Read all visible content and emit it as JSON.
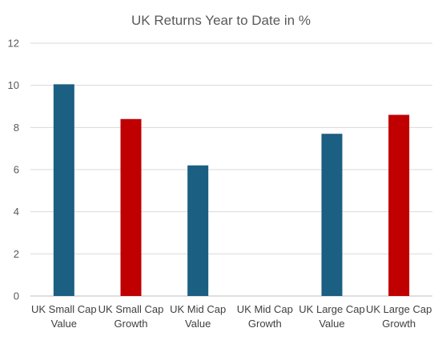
{
  "chart_data": {
    "type": "bar",
    "title": "UK Returns Year to Date in %",
    "xlabel": "",
    "ylabel": "",
    "ylim": [
      0,
      12
    ],
    "yticks": [
      0,
      2,
      4,
      6,
      8,
      10,
      12
    ],
    "grid": true,
    "legend": "none",
    "categories": [
      [
        "UK Small Cap",
        "Value"
      ],
      [
        "UK Small Cap",
        "Growth"
      ],
      [
        "UK Mid Cap",
        "Value"
      ],
      [
        "UK Mid Cap",
        "Growth"
      ],
      [
        "UK Large Cap",
        "Value"
      ],
      [
        "UK Large Cap",
        "Growth"
      ]
    ],
    "values": [
      10.05,
      8.4,
      6.2,
      0,
      7.7,
      8.6
    ],
    "colors": [
      "#1b5f82",
      "#c00000",
      "#1b5f82",
      "#1b5f82",
      "#1b5f82",
      "#c00000"
    ]
  }
}
